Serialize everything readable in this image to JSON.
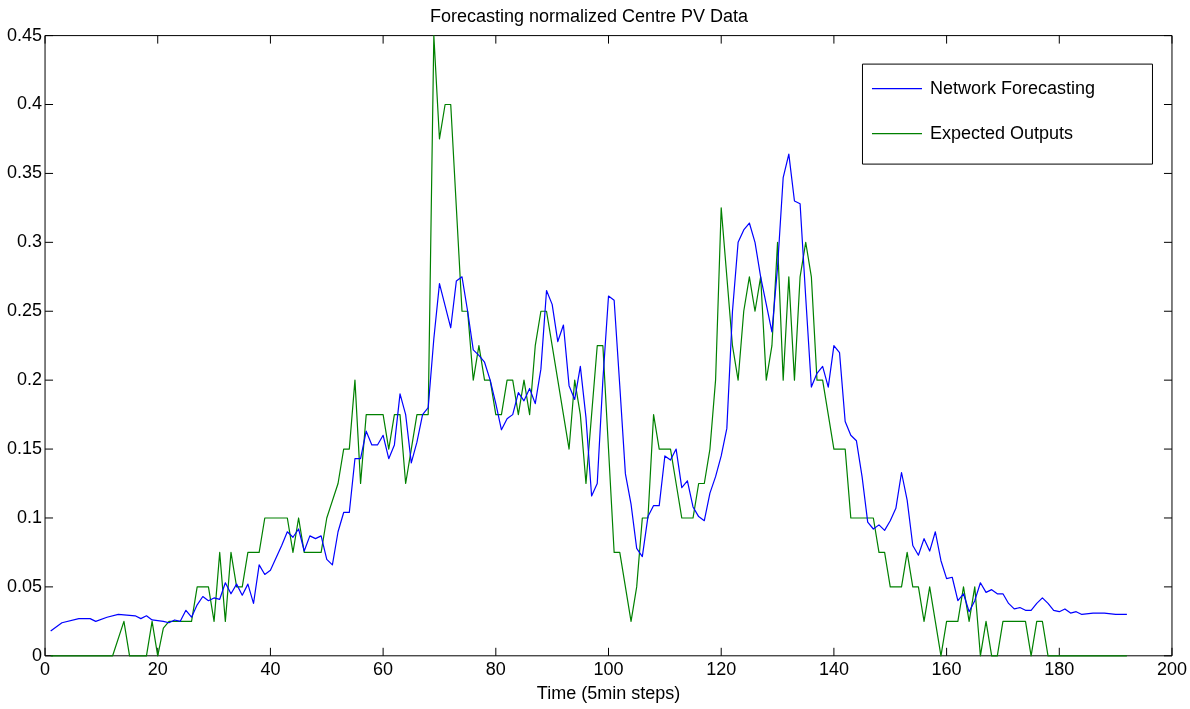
{
  "chart_data": {
    "type": "line",
    "title": "Forecasting normalized Centre PV Data",
    "xlabel": "Time (5min steps)",
    "xlim": [
      0,
      200
    ],
    "xticks": [
      0,
      20,
      40,
      60,
      80,
      100,
      120,
      140,
      160,
      180,
      200
    ],
    "ylim": [
      0,
      0.45
    ],
    "yticks": [
      0,
      0.05,
      0.1,
      0.15,
      0.2,
      0.25,
      0.3,
      0.35,
      0.4,
      0.45
    ],
    "grid": false,
    "legend": "top right",
    "marker": "none",
    "line_style": "solid",
    "series": [
      {
        "name": "Network Forecasting",
        "color": "#0000ff",
        "x": [
          1,
          3,
          6,
          8,
          9,
          11,
          13,
          16,
          17,
          18,
          19,
          21,
          22,
          23,
          24,
          25,
          26,
          27,
          28,
          29,
          30,
          31,
          32,
          33,
          34,
          35,
          36,
          37,
          38,
          39,
          40,
          42,
          43,
          44,
          45,
          46,
          47,
          48,
          49,
          50,
          51,
          52,
          53,
          54,
          55,
          56,
          57,
          58,
          59,
          60,
          61,
          62,
          63,
          64,
          65,
          66,
          67,
          68,
          69,
          70,
          72,
          73,
          74,
          75,
          76,
          77,
          78,
          79,
          80,
          81,
          82,
          83,
          84,
          85,
          86,
          87,
          88,
          89,
          90,
          91,
          92,
          93,
          94,
          95,
          96,
          97,
          98,
          99,
          100,
          101,
          102,
          103,
          104,
          105,
          106,
          107,
          108,
          109,
          110,
          111,
          112,
          113,
          114,
          115,
          116,
          117,
          118,
          119,
          120,
          121,
          122,
          123,
          124,
          125,
          126,
          127,
          128,
          129,
          130,
          131,
          132,
          133,
          134,
          135,
          136,
          137,
          138,
          139,
          140,
          141,
          142,
          143,
          144,
          145,
          146,
          147,
          148,
          149,
          150,
          151,
          152,
          153,
          154,
          155,
          156,
          157,
          158,
          159,
          160,
          161,
          162,
          163,
          164,
          165,
          166,
          167,
          168,
          169,
          170,
          171,
          172,
          173,
          174,
          175,
          176,
          177,
          178,
          179,
          180,
          181,
          182,
          183,
          184,
          186,
          188,
          190,
          192
        ],
        "values": [
          0.018,
          0.024,
          0.027,
          0.027,
          0.025,
          0.028,
          0.03,
          0.029,
          0.027,
          0.029,
          0.026,
          0.025,
          0.024,
          0.026,
          0.025,
          0.033,
          0.028,
          0.037,
          0.043,
          0.04,
          0.042,
          0.041,
          0.053,
          0.045,
          0.052,
          0.044,
          0.052,
          0.038,
          0.066,
          0.059,
          0.062,
          0.08,
          0.09,
          0.086,
          0.092,
          0.076,
          0.087,
          0.085,
          0.087,
          0.07,
          0.066,
          0.09,
          0.104,
          0.104,
          0.143,
          0.143,
          0.163,
          0.153,
          0.153,
          0.16,
          0.143,
          0.153,
          0.19,
          0.175,
          0.14,
          0.155,
          0.175,
          0.18,
          0.23,
          0.27,
          0.238,
          0.272,
          0.275,
          0.25,
          0.222,
          0.218,
          0.213,
          0.2,
          0.183,
          0.164,
          0.172,
          0.175,
          0.191,
          0.185,
          0.194,
          0.183,
          0.208,
          0.265,
          0.255,
          0.228,
          0.24,
          0.196,
          0.186,
          0.21,
          0.173,
          0.116,
          0.125,
          0.2,
          0.261,
          0.258,
          0.196,
          0.132,
          0.11,
          0.078,
          0.072,
          0.101,
          0.109,
          0.109,
          0.145,
          0.142,
          0.15,
          0.122,
          0.127,
          0.108,
          0.101,
          0.098,
          0.118,
          0.13,
          0.145,
          0.165,
          0.25,
          0.3,
          0.309,
          0.314,
          0.3,
          0.275,
          0.255,
          0.235,
          0.282,
          0.347,
          0.364,
          0.33,
          0.328,
          0.26,
          0.195,
          0.205,
          0.21,
          0.195,
          0.225,
          0.22,
          0.17,
          0.16,
          0.156,
          0.13,
          0.097,
          0.092,
          0.095,
          0.091,
          0.098,
          0.107,
          0.133,
          0.113,
          0.08,
          0.073,
          0.085,
          0.076,
          0.09,
          0.069,
          0.056,
          0.057,
          0.04,
          0.045,
          0.032,
          0.04,
          0.053,
          0.046,
          0.048,
          0.045,
          0.045,
          0.038,
          0.034,
          0.035,
          0.033,
          0.033,
          0.038,
          0.042,
          0.038,
          0.033,
          0.032,
          0.034,
          0.031,
          0.032,
          0.03,
          0.031,
          0.031,
          0.03,
          0.03
        ]
      },
      {
        "name": "Expected Outputs",
        "color": "#008000",
        "x": [
          1,
          12,
          14,
          15,
          18,
          19,
          20,
          21,
          22,
          25,
          26,
          27,
          29,
          30,
          31,
          32,
          33,
          34,
          35,
          36,
          38,
          39,
          42,
          43,
          44,
          45,
          46,
          49,
          50,
          52,
          53,
          54,
          55,
          56,
          57,
          59,
          60,
          61,
          62,
          63,
          64,
          65,
          66,
          68,
          69,
          70,
          71,
          72,
          74,
          75,
          76,
          77,
          78,
          79,
          80,
          81,
          82,
          83,
          84,
          85,
          86,
          87,
          88,
          89,
          90,
          91,
          92,
          93,
          94,
          95,
          96,
          97,
          98,
          99,
          100,
          101,
          102,
          104,
          105,
          106,
          107,
          108,
          109,
          110,
          111,
          112,
          113,
          114,
          115,
          116,
          117,
          118,
          119,
          120,
          121,
          122,
          123,
          124,
          125,
          126,
          127,
          128,
          129,
          130,
          131,
          132,
          133,
          134,
          135,
          136,
          137,
          138,
          139,
          140,
          141,
          142,
          143,
          144,
          145,
          146,
          147,
          148,
          149,
          150,
          151,
          152,
          153,
          154,
          155,
          156,
          157,
          158,
          159,
          160,
          161,
          162,
          163,
          164,
          165,
          166,
          167,
          168,
          169,
          170,
          171,
          172,
          173,
          174,
          175,
          176,
          177,
          178,
          179,
          192
        ],
        "values": [
          0,
          0,
          0.025,
          0,
          0,
          0.025,
          0,
          0.02,
          0.025,
          0.025,
          0.025,
          0.05,
          0.05,
          0.025,
          0.075,
          0.025,
          0.075,
          0.05,
          0.05,
          0.075,
          0.075,
          0.1,
          0.1,
          0.1,
          0.075,
          0.1,
          0.075,
          0.075,
          0.1,
          0.125,
          0.15,
          0.15,
          0.2,
          0.125,
          0.175,
          0.175,
          0.175,
          0.15,
          0.175,
          0.175,
          0.125,
          0.15,
          0.175,
          0.175,
          0.45,
          0.375,
          0.4,
          0.4,
          0.25,
          0.25,
          0.2,
          0.225,
          0.2,
          0.2,
          0.175,
          0.175,
          0.2,
          0.2,
          0.175,
          0.2,
          0.175,
          0.225,
          0.25,
          0.25,
          0.225,
          0.2,
          0.175,
          0.15,
          0.2,
          0.175,
          0.125,
          0.175,
          0.225,
          0.225,
          0.15,
          0.075,
          0.075,
          0.025,
          0.05,
          0.1,
          0.1,
          0.175,
          0.15,
          0.15,
          0.15,
          0.125,
          0.1,
          0.1,
          0.1,
          0.125,
          0.125,
          0.15,
          0.2,
          0.325,
          0.275,
          0.225,
          0.2,
          0.25,
          0.275,
          0.25,
          0.275,
          0.2,
          0.225,
          0.3,
          0.2,
          0.275,
          0.2,
          0.275,
          0.3,
          0.275,
          0.2,
          0.2,
          0.175,
          0.15,
          0.15,
          0.15,
          0.1,
          0.1,
          0.1,
          0.1,
          0.1,
          0.075,
          0.075,
          0.05,
          0.05,
          0.05,
          0.075,
          0.05,
          0.05,
          0.025,
          0.05,
          0.025,
          0,
          0.025,
          0.025,
          0.025,
          0.05,
          0.025,
          0.05,
          0,
          0.025,
          0,
          0,
          0.025,
          0.025,
          0.025,
          0.025,
          0.025,
          0,
          0.025,
          0.025,
          0,
          0,
          0
        ]
      }
    ]
  }
}
